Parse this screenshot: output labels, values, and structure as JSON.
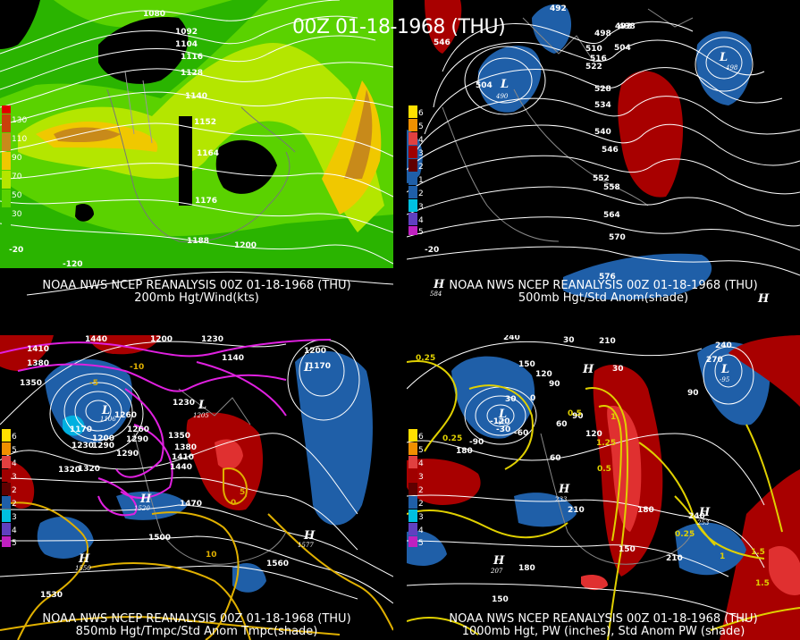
{
  "title": "00Z 01-18-1968 (THU)",
  "panels": [
    {
      "caption_line1": "NOAA NWS NCEP REANALYSIS 00Z 01-18-1968 (THU)",
      "caption_line2": "200mb Hgt/Wind(kts)",
      "legend": [
        "130",
        "110",
        "90",
        "70",
        "50",
        "30"
      ],
      "legend_colors": [
        "#c8400a",
        "#c88a1a",
        "#f0c800",
        "#b4e600",
        "#5ad200",
        "#2ab400"
      ],
      "contour_labels": [
        "1080",
        "1092",
        "1104",
        "1116",
        "1128",
        "1140",
        "1152",
        "1164",
        "1176",
        "1188",
        "1200"
      ],
      "tick_labels": [
        "-120",
        "-20"
      ]
    },
    {
      "caption_line1": "NOAA NWS NCEP REANALYSIS 00Z 01-18-1968 (THU)",
      "caption_line2": "500mb Hgt/Std Anom(shade)",
      "legend": [
        "6",
        "5",
        "4",
        "3",
        "2",
        "1",
        "1",
        "2",
        "3",
        "4",
        "5"
      ],
      "contour_labels": [
        "492",
        "498",
        "492",
        "546",
        "510",
        "516",
        "522",
        "504",
        "528",
        "534",
        "540",
        "546",
        "552",
        "558",
        "564",
        "570",
        "576",
        "498",
        "504"
      ],
      "low_values": [
        "490",
        "498"
      ],
      "high_values": [
        "584"
      ],
      "tick_labels": [
        "-20"
      ]
    },
    {
      "caption_line1": "NOAA NWS NCEP REANALYSIS 00Z 01-18-1968 (THU)",
      "caption_line2": "850mb Hgt/Tmpc/Std Anom Tmpc(shade)",
      "legend": [
        "6",
        "5",
        "4",
        "3",
        "2",
        "1",
        "1",
        "2",
        "3",
        "4",
        "5"
      ],
      "contour_labels": [
        "1440",
        "1410",
        "1380",
        "1350",
        "1320",
        "1290",
        "1260",
        "1230",
        "1200",
        "1170",
        "1200",
        "1230",
        "1260",
        "1290",
        "1350",
        "1380",
        "1410",
        "1440",
        "1470",
        "1500",
        "1530",
        "1560",
        "1290",
        "1320",
        "1230",
        "1140",
        "1200",
        "1170"
      ],
      "low_values": [
        "1106",
        "1205",
        "1140"
      ],
      "high_values": [
        "1520",
        "1550",
        "1577"
      ],
      "temp_labels": [
        "-5",
        "-10",
        "0",
        "5",
        "10"
      ]
    },
    {
      "caption_line1": "NOAA NWS NCEP REANALYSIS 00Z 01-18-1968 (THU)",
      "caption_line2": "1000mb Hgt, PW (inches), Std Anom PW (shade)",
      "legend": [
        "6",
        "5",
        "4",
        "3",
        "2",
        "1",
        "1",
        "2",
        "3",
        "4",
        "5"
      ],
      "contour_labels": [
        "240",
        "150",
        "30",
        "120",
        "90",
        "60",
        "30",
        "0",
        "-30",
        "-60",
        "-90",
        "-120",
        "180",
        "210",
        "240",
        "150",
        "180",
        "210",
        "30",
        "60",
        "90",
        "120",
        "150",
        "180",
        "210",
        "240",
        "270",
        "90"
      ],
      "pw_labels": [
        "0.25",
        "0.5",
        "0.75",
        "1",
        "1.25",
        "1.5",
        "1",
        "0.25",
        "0.5",
        "0.75",
        "1",
        "1.5"
      ],
      "low_values": [
        "-60",
        "-95"
      ],
      "high_values": [
        "207",
        "233",
        "253"
      ]
    }
  ]
}
